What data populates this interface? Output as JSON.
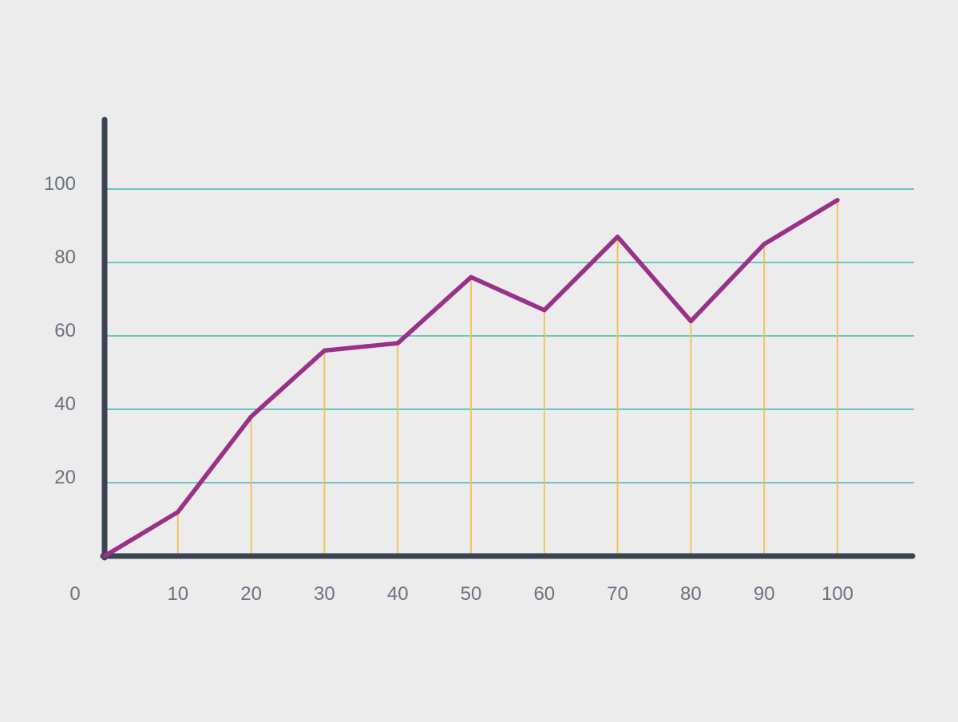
{
  "chart_data": {
    "type": "line",
    "title": "",
    "xlabel": "",
    "ylabel": "",
    "x": [
      0,
      10,
      20,
      30,
      40,
      50,
      60,
      70,
      80,
      90,
      100
    ],
    "series": [
      {
        "values": [
          0,
          12,
          38,
          56,
          58,
          76,
          67,
          87,
          64,
          85,
          97
        ]
      }
    ],
    "xlim": [
      0,
      110
    ],
    "ylim": [
      0,
      120
    ],
    "x_ticks": [
      "0",
      "10",
      "20",
      "30",
      "40",
      "50",
      "60",
      "70",
      "80",
      "90",
      "100"
    ],
    "y_ticks": [
      "20",
      "40",
      "60",
      "80",
      "100"
    ],
    "y_tick_values": [
      20,
      40,
      60,
      80,
      100
    ],
    "grid": "horizontal",
    "drop_lines": true,
    "colors": {
      "background": "#ececec",
      "axis": "#3b4350",
      "gridline": "#3fb8b0",
      "dropline": "#f2c14e",
      "line": "#993188",
      "tick_text": "#6b7280"
    }
  }
}
